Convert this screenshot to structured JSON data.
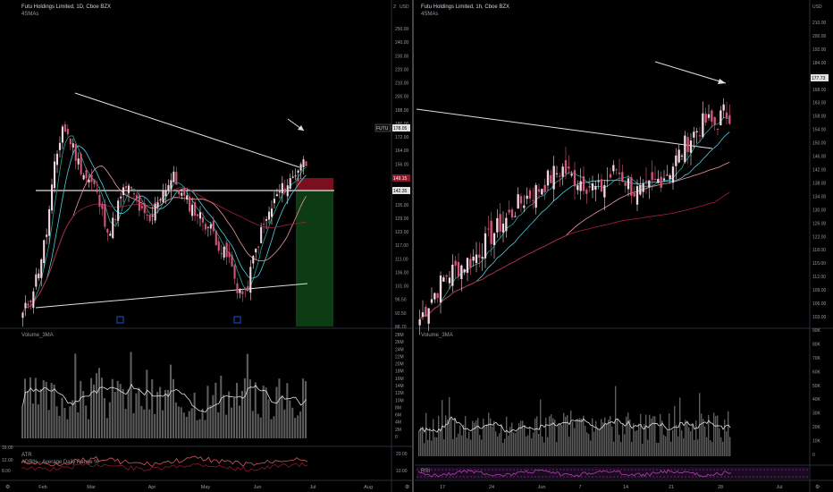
{
  "left": {
    "title": "Futu Holdings Limited, 1D, Cboe BZX",
    "indicator_label": "4SMAs",
    "symbol_tag": "FUTU",
    "last_price": "178.05",
    "stop_price": "149.15",
    "entry_price": "142.35",
    "corner_label": "2",
    "price_ticks": [
      "250.00",
      "240.00",
      "230.00",
      "220.00",
      "210.00",
      "200.00",
      "188.00",
      "180.00",
      "172.00",
      "164.00",
      "156.00",
      "148.00",
      "142.00",
      "135.00",
      "129.00",
      "123.00",
      "117.00",
      "111.00",
      "106.00",
      "101.00",
      "96.50",
      "92.50",
      "88.70"
    ],
    "volume_label": "Volume_3MA",
    "volume_ticks": [
      "28M",
      "26M",
      "24M",
      "22M",
      "20M",
      "18M",
      "16M",
      "14M",
      "12M",
      "10M",
      "8M",
      "6M",
      "4M",
      "2M",
      "0"
    ],
    "atr_label": "ATR",
    "adr_label": "ADR% - Average Daily Range %",
    "atr_ticks": [
      "20.00",
      "12.00",
      "10.00",
      "8.00"
    ],
    "lower_corner_value": "16.00",
    "lower_corner_value2": "12.00",
    "lower_corner_value3": "8.00",
    "date_ticks": [
      "Feb",
      "Mar",
      "Apr",
      "May",
      "Jun",
      "Jul",
      "Aug"
    ]
  },
  "right": {
    "title": "Futu Holdings Limited, 1h, Cboe BZX",
    "indicator_label": "4SMAs",
    "currency": "USD",
    "last_price": "177.73",
    "price_ticks": [
      "210.00",
      "200.00",
      "192.00",
      "184.00",
      "176.00",
      "168.00",
      "163.00",
      "158.00",
      "154.00",
      "150.00",
      "146.00",
      "142.00",
      "138.00",
      "134.00",
      "130.00",
      "126.00",
      "122.00",
      "118.00",
      "115.00",
      "112.00",
      "109.00",
      "106.00",
      "103.00"
    ],
    "volume_label": "Volume_3MA",
    "volume_ticks": [
      "90K",
      "80K",
      "70K",
      "60K",
      "50K",
      "40K",
      "30K",
      "20K",
      "10K",
      "0"
    ],
    "rsi_label": "RSI",
    "date_ticks": [
      "17",
      "24",
      "Jun",
      "7",
      "14",
      "21",
      "28",
      "Jul"
    ]
  },
  "left_usd": "USD",
  "colors": {
    "candle_up": "#f3d6e0",
    "candle_down": "#d4577a",
    "sma_fast": "#26a69a",
    "sma_mid": "#4dd0e1",
    "sma_slow": "#ef9a9a",
    "sma_long": "#a71e3c",
    "trendline": "#e0e0e0",
    "stop_zone": "#7a0f1e",
    "target_zone": "#0c3b14",
    "volume_bar": "#5d5d5d",
    "volume_ma": "#e0e0e0",
    "atr_line": "#d45a5a",
    "rsi_line": "#b040b0"
  },
  "chart_data": [
    {
      "type": "candlestick",
      "title": "Futu Holdings Limited, 1D, Cboe BZX",
      "ylim": [
        88.7,
        250
      ],
      "x_labels": [
        "Feb",
        "Mar",
        "Apr",
        "May",
        "Jun",
        "Jul",
        "Aug"
      ],
      "close_approx": [
        95,
        105,
        120,
        140,
        175,
        198,
        190,
        178,
        170,
        165,
        150,
        140,
        155,
        165,
        160,
        150,
        145,
        158,
        165,
        170,
        160,
        155,
        150,
        145,
        140,
        130,
        125,
        110,
        105,
        125,
        140,
        150,
        160,
        165,
        170,
        178
      ]
    },
    {
      "type": "candlestick",
      "title": "Futu Holdings Limited, 1h, Cboe BZX",
      "ylim": [
        103,
        210
      ],
      "x_labels": [
        "17",
        "24",
        "Jun",
        "7",
        "14",
        "21",
        "28",
        "Jul"
      ],
      "close_approx": [
        104,
        110,
        115,
        120,
        122,
        124,
        126,
        130,
        134,
        138,
        141,
        145,
        148,
        150,
        153,
        156,
        158,
        155,
        154,
        152,
        150,
        154,
        158,
        154,
        150,
        149,
        152,
        155,
        158,
        163,
        168,
        172,
        175,
        174,
        178
      ]
    }
  ]
}
